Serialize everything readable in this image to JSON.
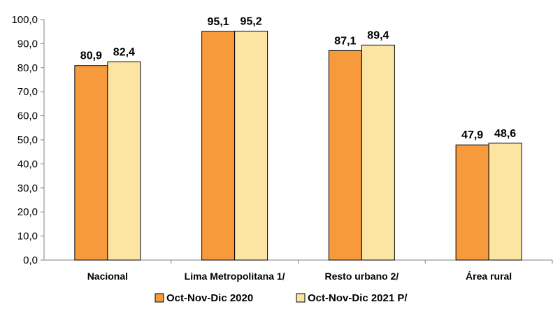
{
  "chart_data": {
    "type": "bar",
    "categories": [
      "Nacional",
      "Lima Metropolitana 1/",
      "Resto urbano 2/",
      "Área rural"
    ],
    "series": [
      {
        "name": "Oct-Nov-Dic 2020",
        "values": [
          80.9,
          95.1,
          87.1,
          47.9
        ],
        "value_labels": [
          "80,9",
          "95,1",
          "87,1",
          "47,9"
        ],
        "color": "#F79A3B"
      },
      {
        "name": "Oct-Nov-Dic 2021 P/",
        "values": [
          82.4,
          95.2,
          89.4,
          48.6
        ],
        "value_labels": [
          "82,4",
          "95,2",
          "89,4",
          "48,6"
        ],
        "color": "#FCE5A2"
      }
    ],
    "ylim": [
      0,
      100
    ],
    "yticks": [
      0,
      10,
      20,
      30,
      40,
      50,
      60,
      70,
      80,
      90,
      100
    ],
    "ytick_labels": [
      "0,0",
      "10,0",
      "20,0",
      "30,0",
      "40,0",
      "50,0",
      "60,0",
      "70,0",
      "80,0",
      "90,0",
      "100,0"
    ],
    "grid": false,
    "legend_position": "bottom",
    "title": "",
    "xlabel": "",
    "ylabel": ""
  }
}
